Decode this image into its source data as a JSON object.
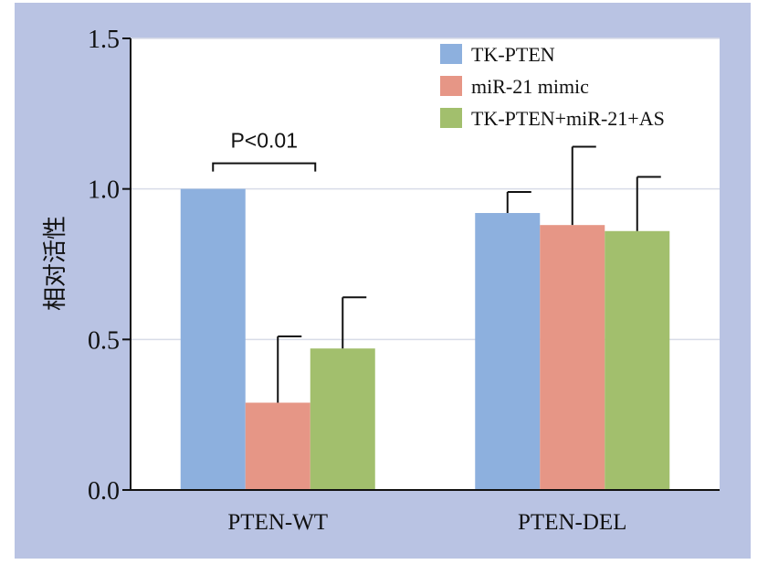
{
  "chart_data": {
    "type": "bar",
    "title": "",
    "xlabel": "",
    "ylabel": "相对活性",
    "ylim": [
      0,
      1.5
    ],
    "yticks": [
      "0.0",
      "0.5",
      "1.0",
      "1.5"
    ],
    "ytick_values": [
      0,
      0.5,
      1.0,
      1.5
    ],
    "grid": true,
    "legend_position": "top-right",
    "categories": [
      "PTEN-WT",
      "PTEN-DEL"
    ],
    "series": [
      {
        "name": "TK-PTEN",
        "color": "#8db0de",
        "values": [
          1.0,
          0.92
        ],
        "errors": [
          0.0,
          0.07
        ]
      },
      {
        "name": "miR-21 mimic",
        "color": "#e69686",
        "values": [
          0.29,
          0.88
        ],
        "errors": [
          0.22,
          0.26
        ]
      },
      {
        "name": "TK-PTEN+miR-21+AS",
        "color": "#a2bf6d",
        "values": [
          0.47,
          0.86
        ],
        "errors": [
          0.17,
          0.18
        ]
      }
    ],
    "annotations": [
      {
        "text": "P<0.01",
        "category": "PTEN-WT",
        "from_series": 0,
        "to_series": 2
      }
    ]
  },
  "colors": {
    "frame_bg": "#b9c3e3",
    "plot_bg": "#ffffff",
    "grid": "#d8dce8",
    "axis": "#111111"
  }
}
